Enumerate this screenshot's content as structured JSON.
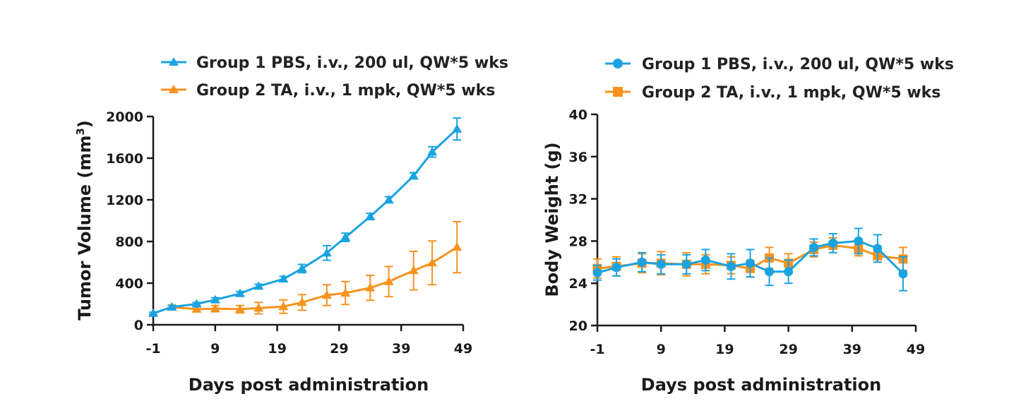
{
  "colors": {
    "blue": "#1aa3e0",
    "orange": "#f7931e",
    "axis": "#1a1a1a"
  },
  "chart_data": [
    {
      "type": "line",
      "id": "tumor",
      "marker_group1": "triangle",
      "marker_group2": "triangle",
      "xlabel": "Days post administration",
      "ylabel_main": "Tumor Volume (mm",
      "ylabel_sup": "3",
      "ylabel_tail": ")",
      "xlim": [
        -1,
        49
      ],
      "ylim": [
        0,
        2000
      ],
      "xticks": [
        -1,
        9,
        19,
        29,
        39,
        49
      ],
      "yticks": [
        0,
        400,
        800,
        1200,
        1600,
        2000
      ],
      "xtick_labels": [
        "-1",
        "9",
        "19",
        "29",
        "39",
        "49"
      ],
      "ytick_labels": [
        "0",
        "400",
        "800",
        "1200",
        "1600",
        "2000"
      ],
      "legend": [
        "Group 1 PBS, i.v., 200 ul, QW*5 wks",
        "Group 2 TA, i.v., 1 mpk, QW*5 wks"
      ],
      "series": [
        {
          "name": "Group 1 PBS, i.v., 200 ul, QW*5 wks",
          "x": [
            -1,
            2,
            6,
            9,
            13,
            16,
            20,
            23,
            27,
            30,
            34,
            37,
            41,
            44,
            48
          ],
          "y": [
            110,
            170,
            200,
            240,
            300,
            370,
            440,
            540,
            690,
            840,
            1040,
            1200,
            1430,
            1660,
            1880
          ],
          "err": [
            10,
            15,
            15,
            20,
            20,
            20,
            25,
            40,
            70,
            40,
            30,
            30,
            30,
            50,
            105
          ]
        },
        {
          "name": "Group 2 TA, i.v., 1 mpk, QW*5 wks",
          "x": [
            2,
            6,
            9,
            13,
            16,
            20,
            23,
            27,
            30,
            34,
            37,
            41,
            44,
            48
          ],
          "y": [
            170,
            150,
            155,
            150,
            160,
            175,
            215,
            285,
            305,
            355,
            415,
            520,
            595,
            745
          ],
          "err": [
            20,
            25,
            30,
            35,
            55,
            65,
            75,
            100,
            110,
            120,
            145,
            185,
            210,
            245
          ]
        }
      ]
    },
    {
      "type": "line",
      "id": "weight",
      "marker_group1": "circle",
      "marker_group2": "square",
      "xlabel": "Days post administration",
      "ylabel_main": "Body Weight (g)",
      "ylabel_sup": "",
      "ylabel_tail": "",
      "xlim": [
        -1,
        49
      ],
      "ylim": [
        20,
        40
      ],
      "xticks": [
        -1,
        9,
        19,
        29,
        39,
        49
      ],
      "yticks": [
        20,
        24,
        28,
        32,
        36,
        40
      ],
      "xtick_labels": [
        "-1",
        "9",
        "19",
        "29",
        "39",
        "49"
      ],
      "ytick_labels": [
        "20",
        "24",
        "28",
        "32",
        "36",
        "40"
      ],
      "legend": [
        "Group 1 PBS, i.v., 200 ul, QW*5 wks",
        "Group 2 TA, i.v., 1 mpk, QW*5 wks"
      ],
      "series": [
        {
          "name": "Group 1 PBS, i.v., 200 ul, QW*5 wks",
          "x": [
            -1,
            2,
            6,
            9,
            13,
            16,
            20,
            23,
            26,
            29,
            33,
            36,
            40,
            43,
            47
          ],
          "y": [
            25.0,
            25.5,
            26.0,
            25.8,
            25.8,
            26.2,
            25.6,
            25.9,
            25.1,
            25.1,
            27.4,
            27.8,
            28.0,
            27.3,
            24.9
          ],
          "err": [
            0.7,
            0.8,
            0.9,
            0.9,
            0.9,
            1.0,
            1.2,
            1.3,
            1.3,
            1.1,
            0.8,
            0.9,
            1.2,
            1.3,
            1.6
          ]
        },
        {
          "name": "Group 2 TA, i.v., 1 mpk, QW*5 wks",
          "x": [
            -1,
            2,
            6,
            9,
            13,
            16,
            20,
            23,
            26,
            29,
            33,
            36,
            40,
            43,
            47
          ],
          "y": [
            25.4,
            25.6,
            25.9,
            25.9,
            25.8,
            25.8,
            25.7,
            25.4,
            26.4,
            25.9,
            27.2,
            27.6,
            27.3,
            26.6,
            26.3
          ],
          "err": [
            0.9,
            0.9,
            0.9,
            1.1,
            1.1,
            0.9,
            0.8,
            0.8,
            1.0,
            0.9,
            0.7,
            0.7,
            0.7,
            0.6,
            1.1
          ]
        }
      ]
    }
  ]
}
